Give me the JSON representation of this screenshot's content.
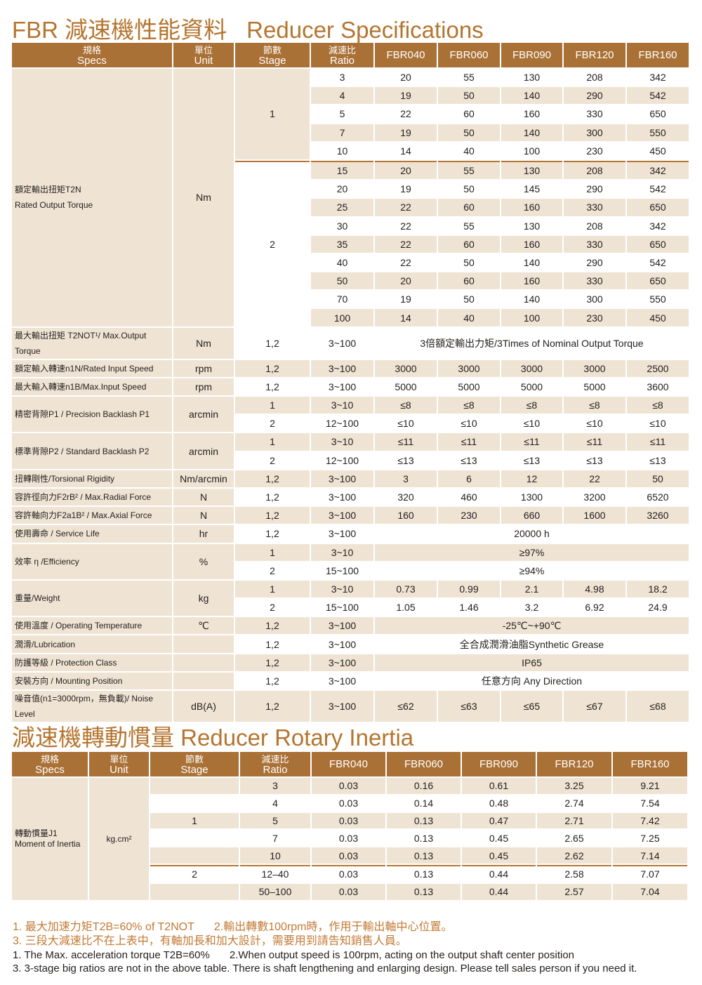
{
  "title1": {
    "zh": "FBR 減速機性能資料",
    "en": "Reducer Specifications"
  },
  "title2": {
    "zh": "減速機轉動慣量",
    "en": "Reducer Rotary Inertia"
  },
  "colors": {
    "accent": "#aa7136",
    "title": "#b5752f",
    "stripe": "#efe3d4"
  },
  "headers": [
    {
      "zh": "規格",
      "en": "Specs"
    },
    {
      "zh": "單位",
      "en": "Unit"
    },
    {
      "zh": "節數",
      "en": "Stage"
    },
    {
      "zh": "減速比",
      "en": "Ratio"
    }
  ],
  "models": [
    "FBR040",
    "FBR060",
    "FBR090",
    "FBR120",
    "FBR160"
  ],
  "rated_torque": {
    "spec_zh": "額定輸出扭矩T2N",
    "spec_en": "Rated Output Torque",
    "unit": "Nm",
    "stages": [
      {
        "stage": "1",
        "rows": [
          {
            "ratio": "3",
            "values": [
              "20",
              "55",
              "130",
              "208",
              "342"
            ]
          },
          {
            "ratio": "4",
            "values": [
              "19",
              "50",
              "140",
              "290",
              "542"
            ]
          },
          {
            "ratio": "5",
            "values": [
              "22",
              "60",
              "160",
              "330",
              "650"
            ]
          },
          {
            "ratio": "7",
            "values": [
              "19",
              "50",
              "140",
              "300",
              "550"
            ]
          },
          {
            "ratio": "10",
            "values": [
              "14",
              "40",
              "100",
              "230",
              "450"
            ]
          }
        ]
      },
      {
        "stage": "2",
        "rows": [
          {
            "ratio": "15",
            "values": [
              "20",
              "55",
              "130",
              "208",
              "342"
            ]
          },
          {
            "ratio": "20",
            "values": [
              "19",
              "50",
              "145",
              "290",
              "542"
            ]
          },
          {
            "ratio": "25",
            "values": [
              "22",
              "60",
              "160",
              "330",
              "650"
            ]
          },
          {
            "ratio": "30",
            "values": [
              "22",
              "55",
              "130",
              "208",
              "342"
            ]
          },
          {
            "ratio": "35",
            "values": [
              "22",
              "60",
              "160",
              "330",
              "650"
            ]
          },
          {
            "ratio": "40",
            "values": [
              "22",
              "50",
              "140",
              "290",
              "542"
            ]
          },
          {
            "ratio": "50",
            "values": [
              "20",
              "60",
              "160",
              "330",
              "650"
            ]
          },
          {
            "ratio": "70",
            "values": [
              "19",
              "50",
              "140",
              "300",
              "550"
            ]
          },
          {
            "ratio": "100",
            "values": [
              "14",
              "40",
              "100",
              "230",
              "450"
            ]
          }
        ]
      }
    ]
  },
  "specs": [
    {
      "spec": "最大輸出扭矩 T2NOT¹/ Max.Output Torque",
      "unit": "Nm",
      "rows": [
        {
          "stage": "1,2",
          "ratio": "3~100",
          "merged": "3倍額定輸出力矩/3Times of Nominal Output Torque"
        }
      ]
    },
    {
      "spec": "額定輸入轉速n1N/Rated Input Speed",
      "unit": "rpm",
      "rows": [
        {
          "stage": "1,2",
          "ratio": "3~100",
          "values": [
            "3000",
            "3000",
            "3000",
            "3000",
            "2500"
          ]
        }
      ]
    },
    {
      "spec": "最大輸入轉速n1B/Max.Input Speed",
      "unit": "rpm",
      "rows": [
        {
          "stage": "1,2",
          "ratio": "3~100",
          "values": [
            "5000",
            "5000",
            "5000",
            "5000",
            "3600"
          ]
        }
      ]
    },
    {
      "spec": "精密背隙P1 / Precision Backlash P1",
      "unit": "arcmin",
      "rows": [
        {
          "stage": "1",
          "ratio": "3~10",
          "values": [
            "≤8",
            "≤8",
            "≤8",
            "≤8",
            "≤8"
          ]
        },
        {
          "stage": "2",
          "ratio": "12~100",
          "values": [
            "≤10",
            "≤10",
            "≤10",
            "≤10",
            "≤10"
          ]
        }
      ]
    },
    {
      "spec": "標準背隙P2 / Standard Backlash P2",
      "unit": "arcmin",
      "rows": [
        {
          "stage": "1",
          "ratio": "3~10",
          "values": [
            "≤11",
            "≤11",
            "≤11",
            "≤11",
            "≤11"
          ]
        },
        {
          "stage": "2",
          "ratio": "12~100",
          "values": [
            "≤13",
            "≤13",
            "≤13",
            "≤13",
            "≤13"
          ]
        }
      ]
    },
    {
      "spec": "扭轉剛性/Torsional Rigidity",
      "unit": "Nm/arcmin",
      "rows": [
        {
          "stage": "1,2",
          "ratio": "3~100",
          "values": [
            "3",
            "6",
            "12",
            "22",
            "50"
          ]
        }
      ]
    },
    {
      "spec": "容許徑向力F2rB² / Max.Radial Force",
      "unit": "N",
      "rows": [
        {
          "stage": "1,2",
          "ratio": "3~100",
          "values": [
            "320",
            "460",
            "1300",
            "3200",
            "6520"
          ]
        }
      ]
    },
    {
      "spec": "容許軸向力F2a1B² / Max.Axial Force",
      "unit": "N",
      "rows": [
        {
          "stage": "1,2",
          "ratio": "3~100",
          "values": [
            "160",
            "230",
            "660",
            "1600",
            "3260"
          ]
        }
      ]
    },
    {
      "spec": "使用壽命 / Service Life",
      "unit": "hr",
      "rows": [
        {
          "stage": "1,2",
          "ratio": "3~100",
          "merged": "20000 h"
        }
      ]
    },
    {
      "spec": "效率 η /Efficiency",
      "unit": "%",
      "rows": [
        {
          "stage": "1",
          "ratio": "3~10",
          "merged": "≥97%"
        },
        {
          "stage": "2",
          "ratio": "15~100",
          "merged": "≥94%"
        }
      ]
    },
    {
      "spec": "重量/Weight",
      "unit": "kg",
      "rows": [
        {
          "stage": "1",
          "ratio": "3~10",
          "values": [
            "0.73",
            "0.99",
            "2.1",
            "4.98",
            "18.2"
          ]
        },
        {
          "stage": "2",
          "ratio": "15~100",
          "values": [
            "1.05",
            "1.46",
            "3.2",
            "6.92",
            "24.9"
          ]
        }
      ]
    },
    {
      "spec": "使用溫度 / Operating Temperature",
      "unit": "℃",
      "rows": [
        {
          "stage": "1,2",
          "ratio": "3~100",
          "merged": "-25℃~+90℃"
        }
      ]
    },
    {
      "spec": "潤滑/Lubrication",
      "unit": "",
      "rows": [
        {
          "stage": "1,2",
          "ratio": "3~100",
          "merged": "全合成潤滑油脂Synthetic Grease"
        }
      ]
    },
    {
      "spec": "防護等級 / Protection Class",
      "unit": "",
      "rows": [
        {
          "stage": "1,2",
          "ratio": "3~100",
          "merged": "IP65"
        }
      ]
    },
    {
      "spec": "安裝方向 / Mounting Position",
      "unit": "",
      "rows": [
        {
          "stage": "1,2",
          "ratio": "3~100",
          "merged": "任意方向 Any Direction"
        }
      ]
    },
    {
      "spec": "噪音值(n1=3000rpm，無負載)/ Noise Level",
      "unit": "dB(A)",
      "rows": [
        {
          "stage": "1,2",
          "ratio": "3~100",
          "values": [
            "≤62",
            "≤63",
            "≤65",
            "≤67",
            "≤68"
          ]
        }
      ]
    }
  ],
  "inertia": {
    "spec_zh": "轉動慣量J1",
    "spec_en": "Moment of Inertia",
    "unit": "kg.cm²",
    "rows": [
      {
        "stage": "",
        "ratio": "3",
        "values": [
          "0.03",
          "0.16",
          "0.61",
          "3.25",
          "9.21"
        ]
      },
      {
        "stage": "",
        "ratio": "4",
        "values": [
          "0.03",
          "0.14",
          "0.48",
          "2.74",
          "7.54"
        ]
      },
      {
        "stage": "1",
        "ratio": "5",
        "values": [
          "0.03",
          "0.13",
          "0.47",
          "2.71",
          "7.42"
        ]
      },
      {
        "stage": "",
        "ratio": "7",
        "values": [
          "0.03",
          "0.13",
          "0.45",
          "2.65",
          "7.25"
        ]
      },
      {
        "stage": "",
        "ratio": "10",
        "values": [
          "0.03",
          "0.13",
          "0.45",
          "2.62",
          "7.14"
        ]
      },
      {
        "stage": "2",
        "ratio": "12–40",
        "values": [
          "0.03",
          "0.13",
          "0.44",
          "2.58",
          "7.07"
        ]
      },
      {
        "stage": "",
        "ratio": "50–100",
        "values": [
          "0.03",
          "0.13",
          "0.44",
          "2.57",
          "7.04"
        ]
      }
    ]
  },
  "notes": {
    "zh1a": "1. 最大加速力矩T2B=60% of T2NOT",
    "zh1b": "2.輸出轉數100rpm時，作用于輸出軸中心位置。",
    "zh2": "3. 三段大減速比不在上表中，有軸加長和加大設計，需要用到請告知銷售人員。",
    "en1a": "1. The Max. acceleration torque T2B=60%",
    "en1b": "2.When output speed is 100rpm, acting on the output shaft center position",
    "en2": "3. 3-stage big ratios are not in the above table. There is shaft lengthening and enlarging design. Please tell sales person if you need it."
  }
}
